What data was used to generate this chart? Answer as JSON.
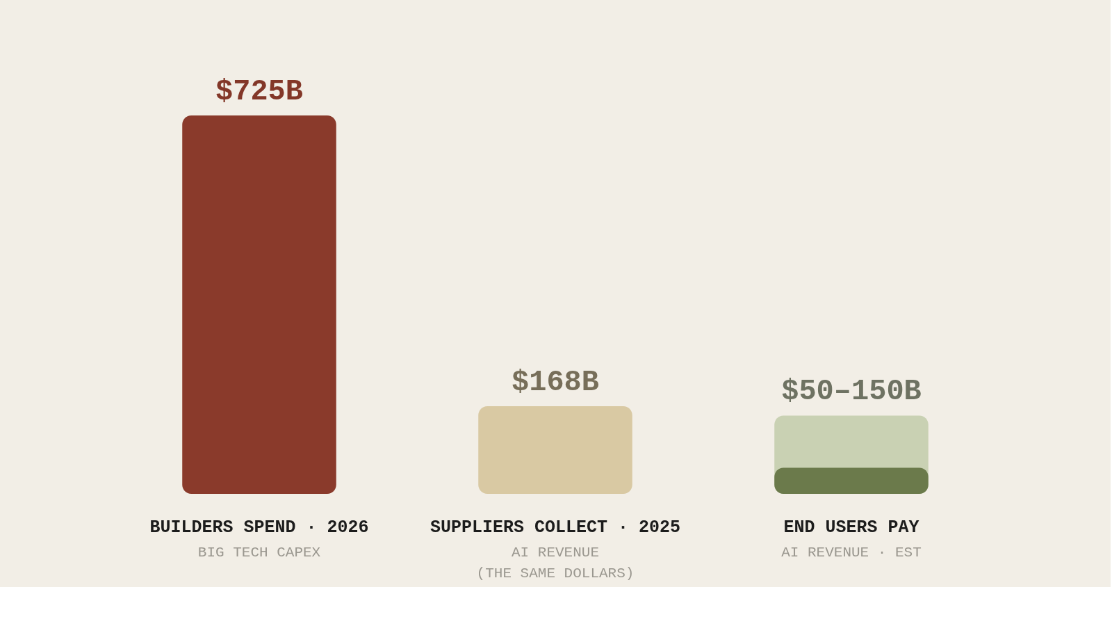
{
  "chart_data": {
    "type": "bar",
    "categories": [
      "BUILDERS SPEND · 2026",
      "SUPPLIERS COLLECT · 2025",
      "END USERS PAY"
    ],
    "series": [
      {
        "colors": [
          "#8a3a2b",
          "#d9c9a3",
          "#c9d1b3"
        ],
        "values": [
          725,
          168,
          150
        ],
        "value_labels": [
          "$725B",
          "$168B",
          "$50–150B"
        ]
      },
      {
        "color": "#6b7a4b",
        "values": [
          null,
          null,
          50
        ]
      }
    ],
    "annotations": [
      "BIG TECH CAPEX",
      "AI REVENUE\n(THE SAME DOLLARS)",
      "AI REVENUE · EST"
    ],
    "grid": false,
    "tick_labels": "x"
  }
}
